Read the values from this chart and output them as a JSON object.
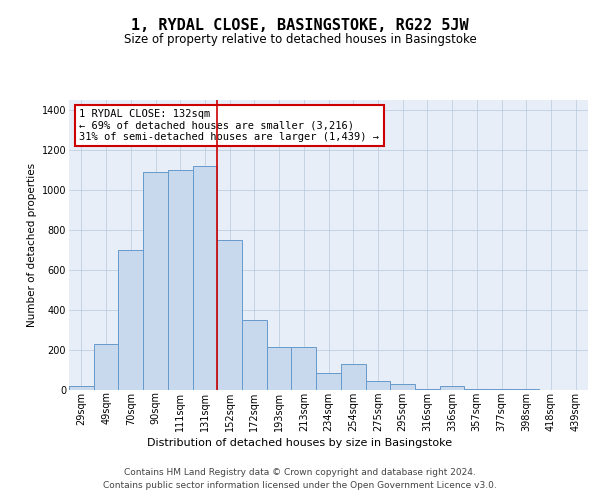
{
  "title": "1, RYDAL CLOSE, BASINGSTOKE, RG22 5JW",
  "subtitle": "Size of property relative to detached houses in Basingstoke",
  "xlabel": "Distribution of detached houses by size in Basingstoke",
  "ylabel": "Number of detached properties",
  "categories": [
    "29sqm",
    "49sqm",
    "70sqm",
    "90sqm",
    "111sqm",
    "131sqm",
    "152sqm",
    "172sqm",
    "193sqm",
    "213sqm",
    "234sqm",
    "254sqm",
    "275sqm",
    "295sqm",
    "316sqm",
    "336sqm",
    "357sqm",
    "377sqm",
    "398sqm",
    "418sqm",
    "439sqm"
  ],
  "values": [
    20,
    230,
    700,
    1090,
    1100,
    1120,
    750,
    350,
    215,
    215,
    85,
    130,
    45,
    30,
    5,
    20,
    5,
    5,
    3,
    1,
    1
  ],
  "bar_color": "#c8d9ee",
  "bar_edge_color": "#6699cc",
  "bar_edge_width": 0.7,
  "vline_x": 5.5,
  "vline_color": "#cc0000",
  "annotation_text": "1 RYDAL CLOSE: 132sqm\n← 69% of detached houses are smaller (3,216)\n31% of semi-detached houses are larger (1,439) →",
  "annotation_box_color": "#ffffff",
  "annotation_box_edge": "#cc0000",
  "ylim": [
    0,
    1450
  ],
  "yticks": [
    0,
    200,
    400,
    600,
    800,
    1000,
    1200,
    1400
  ],
  "plot_bg": "#e8eef8",
  "footer_line1": "Contains HM Land Registry data © Crown copyright and database right 2024.",
  "footer_line2": "Contains public sector information licensed under the Open Government Licence v3.0.",
  "title_fontsize": 11,
  "subtitle_fontsize": 8.5,
  "xlabel_fontsize": 8,
  "ylabel_fontsize": 7.5,
  "tick_fontsize": 7,
  "footer_fontsize": 6.5,
  "ann_fontsize": 7.5
}
